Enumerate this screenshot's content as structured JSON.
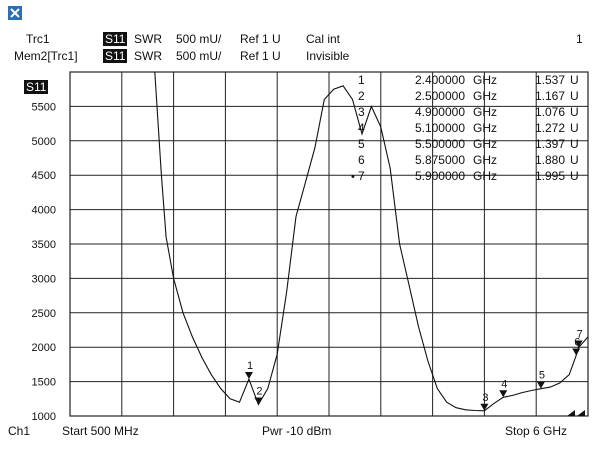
{
  "header": {
    "row1": {
      "trace": "Trc1",
      "param": "S11",
      "format": "SWR",
      "scale": "500 mU/",
      "ref": "Ref 1 U",
      "cal": "Cal int",
      "channel_num": "1"
    },
    "row2": {
      "trace": "Mem2[Trc1]",
      "param": "S11",
      "format": "SWR",
      "scale": "500 mU/",
      "ref": "Ref 1 U",
      "cal": "Invisible"
    }
  },
  "plot": {
    "trace_badge": "S11",
    "y_ticks": [
      "5500",
      "5000",
      "4500",
      "4000",
      "3500",
      "3000",
      "2500",
      "2000",
      "1500",
      "1000"
    ]
  },
  "markers": [
    {
      "id": "1",
      "freq": "2.400000",
      "unit": "GHz",
      "value": "1.537",
      "vunit": "U",
      "active": false
    },
    {
      "id": "2",
      "freq": "2.500000",
      "unit": "GHz",
      "value": "1.167",
      "vunit": "U",
      "active": false
    },
    {
      "id": "3",
      "freq": "4.900000",
      "unit": "GHz",
      "value": "1.076",
      "vunit": "U",
      "active": false
    },
    {
      "id": "4",
      "freq": "5.100000",
      "unit": "GHz",
      "value": "1.272",
      "vunit": "U",
      "active": false
    },
    {
      "id": "5",
      "freq": "5.500000",
      "unit": "GHz",
      "value": "1.397",
      "vunit": "U",
      "active": false
    },
    {
      "id": "6",
      "freq": "5.875000",
      "unit": "GHz",
      "value": "1.880",
      "vunit": "U",
      "active": false
    },
    {
      "id": "7",
      "freq": "5.900000",
      "unit": "GHz",
      "value": "1.995",
      "vunit": "U",
      "active": true
    }
  ],
  "footer": {
    "channel": "Ch1",
    "start": "Start  500 MHz",
    "power": "Pwr  -10 dBm",
    "stop": "Stop  6 GHz"
  },
  "colors": {
    "trace": "#111111",
    "grid": "#222222",
    "background": "#ffffff"
  },
  "chart_data": {
    "type": "line",
    "x": [
      1.4,
      1.47,
      1.52,
      1.6,
      1.7,
      1.8,
      1.9,
      2.0,
      2.1,
      2.2,
      2.3,
      2.4,
      2.5,
      2.6,
      2.7,
      2.8,
      2.9,
      3.0,
      3.1,
      3.2,
      3.3,
      3.4,
      3.5,
      3.6,
      3.7,
      3.8,
      3.9,
      4.0,
      4.1,
      4.2,
      4.3,
      4.4,
      4.5,
      4.6,
      4.7,
      4.8,
      4.9,
      5.0,
      5.1,
      5.2,
      5.3,
      5.4,
      5.5,
      5.6,
      5.7,
      5.8,
      5.875,
      5.9,
      6.0
    ],
    "y": [
      6000,
      4500,
      3600,
      3000,
      2500,
      2150,
      1850,
      1600,
      1400,
      1250,
      1200,
      1537,
      1167,
      1400,
      1900,
      2800,
      3900,
      4400,
      4900,
      5600,
      5750,
      5800,
      5600,
      5100,
      5500,
      5200,
      4600,
      3500,
      2900,
      2300,
      1800,
      1400,
      1200,
      1120,
      1090,
      1080,
      1076,
      1180,
      1272,
      1300,
      1340,
      1370,
      1397,
      1420,
      1480,
      1600,
      1880,
      1995,
      2150
    ],
    "xlabel": "",
    "ylabel": "",
    "xlim": [
      0.5,
      6.0
    ],
    "ylim": [
      1000,
      6000
    ],
    "grid": true,
    "markers_x": [
      2.4,
      2.5,
      4.9,
      5.1,
      5.5,
      5.875,
      5.9
    ],
    "markers_y": [
      1537,
      1167,
      1076,
      1272,
      1397,
      1880,
      1995
    ]
  }
}
